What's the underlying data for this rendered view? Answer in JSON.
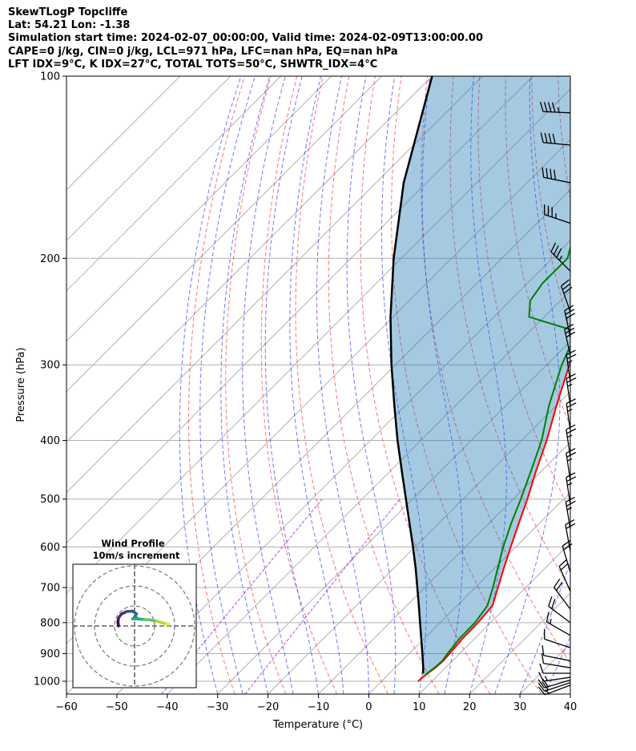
{
  "title_lines": [
    "SkewTLogP Topcliffe",
    "Lat: 54.21   Lon: -1.38",
    "Simulation start time: 2024-02-07_00:00:00, Valid time: 2024-02-09T13:00:00.00",
    "CAPE=0 j/kg, CIN=0 j/kg, LCL=971 hPa, LFC=nan hPa, EQ=nan hPa",
    "LFT IDX=9°C, K IDX=27°C, TOTAL TOTS=50°C, SHWTR_IDX=4°C"
  ],
  "chart_data": {
    "type": "skew-t",
    "xlabel": "Temperature (°C)",
    "ylabel": "Pressure (hPa)",
    "xlim": [
      -60,
      40
    ],
    "ylim": [
      1050,
      100
    ],
    "x_ticks": [
      "−60",
      "−50",
      "−40",
      "−30",
      "−20",
      "−10",
      "0",
      "10",
      "20",
      "30",
      "40"
    ],
    "y_ticks": [
      "100",
      "200",
      "300",
      "400",
      "500",
      "600",
      "700",
      "800",
      "900",
      "1000"
    ],
    "y_tick_values": [
      100,
      200,
      300,
      400,
      500,
      600,
      700,
      800,
      900,
      1000
    ],
    "grid": true,
    "colors": {
      "temperature": "#ff0000",
      "dewpoint": "#008000",
      "parcel": "#000000",
      "shading": "#1f77b4",
      "dry_adiabats": "#ff0000",
      "moist_adiabats": "#0000ff",
      "mixing_lines": "#9400d3"
    },
    "temperature": [
      {
        "p": 1000,
        "t": 7.2
      },
      {
        "p": 970,
        "t": 7.6
      },
      {
        "p": 950,
        "t": 8.0
      },
      {
        "p": 925,
        "t": 8.2
      },
      {
        "p": 900,
        "t": 8.0
      },
      {
        "p": 850,
        "t": 7.6
      },
      {
        "p": 800,
        "t": 7.5
      },
      {
        "p": 750,
        "t": 7.0
      },
      {
        "p": 700,
        "t": 4.5
      },
      {
        "p": 650,
        "t": 1.8
      },
      {
        "p": 600,
        "t": -1.0
      },
      {
        "p": 550,
        "t": -4.0
      },
      {
        "p": 500,
        "t": -7.2
      },
      {
        "p": 450,
        "t": -11.0
      },
      {
        "p": 400,
        "t": -15.0
      },
      {
        "p": 350,
        "t": -20.0
      },
      {
        "p": 300,
        "t": -25.5
      },
      {
        "p": 290,
        "t": -26.5
      },
      {
        "p": 270,
        "t": -28.5
      },
      {
        "p": 260,
        "t": -28.0
      },
      {
        "p": 250,
        "t": -28.5
      },
      {
        "p": 230,
        "t": -31.0
      },
      {
        "p": 215,
        "t": -32.0
      },
      {
        "p": 200,
        "t": -35.0
      },
      {
        "p": 180,
        "t": -39.0
      },
      {
        "p": 160,
        "t": -43.5
      },
      {
        "p": 140,
        "t": -49.0
      },
      {
        "p": 125,
        "t": -54.0
      },
      {
        "p": 112,
        "t": -57.0
      },
      {
        "p": 100,
        "t": -61.0
      }
    ],
    "dewpoint": [
      {
        "p": 975,
        "t": 7.4
      },
      {
        "p": 950,
        "t": 7.8
      },
      {
        "p": 925,
        "t": 8.0
      },
      {
        "p": 900,
        "t": 7.6
      },
      {
        "p": 850,
        "t": 7.0
      },
      {
        "p": 800,
        "t": 6.9
      },
      {
        "p": 750,
        "t": 6.0
      },
      {
        "p": 700,
        "t": 3.5
      },
      {
        "p": 650,
        "t": 0.6
      },
      {
        "p": 600,
        "t": -2.5
      },
      {
        "p": 550,
        "t": -5.5
      },
      {
        "p": 500,
        "t": -8.5
      },
      {
        "p": 450,
        "t": -12.0
      },
      {
        "p": 400,
        "t": -16.0
      },
      {
        "p": 350,
        "t": -21.5
      },
      {
        "p": 300,
        "t": -27.0
      },
      {
        "p": 280,
        "t": -29.0
      },
      {
        "p": 265,
        "t": -30.0
      },
      {
        "p": 250,
        "t": -43.0
      },
      {
        "p": 235,
        "t": -46.0
      },
      {
        "p": 220,
        "t": -47.0
      },
      {
        "p": 200,
        "t": -47.0
      },
      {
        "p": 180,
        "t": -51.0
      },
      {
        "p": 160,
        "t": -54.0
      },
      {
        "p": 140,
        "t": -58.0
      },
      {
        "p": 125,
        "t": -62.0
      },
      {
        "p": 110,
        "t": -67.0
      },
      {
        "p": 100,
        "t": -71.0
      }
    ],
    "parcel": [
      {
        "p": 971,
        "t": 6.7
      },
      {
        "p": 950,
        "t": 5.6
      },
      {
        "p": 900,
        "t": 2.6
      },
      {
        "p": 850,
        "t": -0.6
      },
      {
        "p": 800,
        "t": -4.0
      },
      {
        "p": 750,
        "t": -7.6
      },
      {
        "p": 700,
        "t": -11.5
      },
      {
        "p": 650,
        "t": -15.7
      },
      {
        "p": 600,
        "t": -20.4
      },
      {
        "p": 550,
        "t": -25.6
      },
      {
        "p": 500,
        "t": -31.3
      },
      {
        "p": 450,
        "t": -37.6
      },
      {
        "p": 400,
        "t": -44.6
      },
      {
        "p": 350,
        "t": -52.2
      },
      {
        "p": 300,
        "t": -60.8
      },
      {
        "p": 250,
        "t": -70.5
      },
      {
        "p": 200,
        "t": -81.5
      },
      {
        "p": 150,
        "t": -94.5
      },
      {
        "p": 100,
        "t": -110.0
      }
    ],
    "winds": [
      {
        "p": 1015,
        "u": 8,
        "v": 3
      },
      {
        "p": 1005,
        "u": 9,
        "v": 3
      },
      {
        "p": 995,
        "u": 10,
        "v": 3
      },
      {
        "p": 985,
        "u": 7,
        "v": 1
      },
      {
        "p": 970,
        "u": 6,
        "v": 0
      },
      {
        "p": 950,
        "u": 6,
        "v": -1
      },
      {
        "p": 925,
        "u": 5,
        "v": -1
      },
      {
        "p": 880,
        "u": 6,
        "v": -2
      },
      {
        "p": 840,
        "u": 7,
        "v": -4
      },
      {
        "p": 800,
        "u": 8,
        "v": -6
      },
      {
        "p": 760,
        "u": 6,
        "v": -8
      },
      {
        "p": 710,
        "u": 4,
        "v": -9
      },
      {
        "p": 660,
        "u": 3,
        "v": -10
      },
      {
        "p": 610,
        "u": 2,
        "v": -11
      },
      {
        "p": 560,
        "u": 2,
        "v": -12
      },
      {
        "p": 510,
        "u": 2,
        "v": -13
      },
      {
        "p": 465,
        "u": 2,
        "v": -13
      },
      {
        "p": 425,
        "u": 2,
        "v": -13
      },
      {
        "p": 385,
        "u": 2,
        "v": -14
      },
      {
        "p": 350,
        "u": 2,
        "v": -14
      },
      {
        "p": 320,
        "u": 2,
        "v": -14
      },
      {
        "p": 290,
        "u": 3,
        "v": -14
      },
      {
        "p": 270,
        "u": 3,
        "v": -14
      },
      {
        "p": 245,
        "u": 5,
        "v": -14
      },
      {
        "p": 210,
        "u": 12,
        "v": -12
      },
      {
        "p": 175,
        "u": 18,
        "v": -6
      },
      {
        "p": 150,
        "u": 20,
        "v": -4
      },
      {
        "p": 130,
        "u": 21,
        "v": -2
      },
      {
        "p": 115,
        "u": 22,
        "v": -1
      }
    ],
    "hodograph": {
      "title": "Wind Profile",
      "subtitle": "10m/s increment",
      "rings_ms": [
        10,
        20,
        30
      ],
      "points": [
        {
          "u": -8,
          "v": 0
        },
        {
          "u": -8.3,
          "v": 2
        },
        {
          "u": -8,
          "v": 4
        },
        {
          "u": -6.5,
          "v": 6
        },
        {
          "u": -4,
          "v": 7.2
        },
        {
          "u": -1,
          "v": 7.4
        },
        {
          "u": 1,
          "v": 6
        },
        {
          "u": 0,
          "v": 4.5
        },
        {
          "u": 2,
          "v": 3.5
        },
        {
          "u": -1,
          "v": 3.6
        },
        {
          "u": 2,
          "v": 3.5
        },
        {
          "u": 5,
          "v": 3.2
        },
        {
          "u": 8,
          "v": 3
        },
        {
          "u": 11,
          "v": 2.4
        },
        {
          "u": 14,
          "v": 1.5
        },
        {
          "u": 16,
          "v": 1
        },
        {
          "u": 17,
          "v": 0.8
        }
      ]
    }
  }
}
